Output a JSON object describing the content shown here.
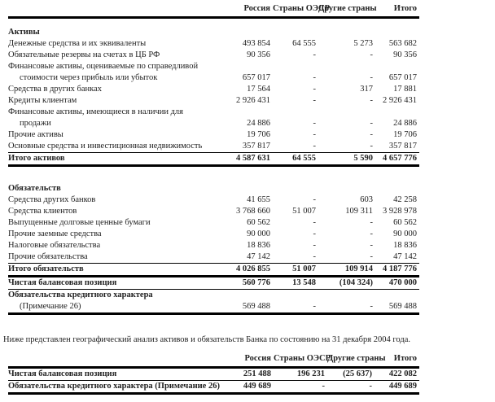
{
  "table1": {
    "headers": [
      "",
      "Россия",
      "Страны ОЭСР",
      "Другие страны",
      "Итого"
    ],
    "rows": [
      {
        "label": "Активы",
        "style": "section",
        "values": [
          "",
          "",
          "",
          ""
        ]
      },
      {
        "label": "Денежные средства и их эквиваленты",
        "values": [
          "493 854",
          "64 555",
          "5 273",
          "563 682"
        ]
      },
      {
        "label": "Обязательные резервы на счетах в ЦБ РФ",
        "values": [
          "90 356",
          "-",
          "-",
          "90 356"
        ]
      },
      {
        "label": "Финансовые активы, оцениваемые по справедливой",
        "values": [
          "",
          "",
          "",
          ""
        ]
      },
      {
        "label": "стоимости через прибыль или убыток",
        "style": "indent",
        "values": [
          "657 017",
          "-",
          "-",
          "657 017"
        ]
      },
      {
        "label": "Средства в других банках",
        "values": [
          "17 564",
          "-",
          "317",
          "17 881"
        ]
      },
      {
        "label": "Кредиты клиентам",
        "values": [
          "2 926 431",
          "-",
          "-",
          "2 926 431"
        ]
      },
      {
        "label": "Финансовые активы, имеющиеся в наличии для",
        "values": [
          "",
          "",
          "",
          ""
        ]
      },
      {
        "label": "продажи",
        "style": "indent",
        "values": [
          "24 886",
          "-",
          "-",
          "24 886"
        ]
      },
      {
        "label": "Прочие активы",
        "values": [
          "19 706",
          "-",
          "-",
          "19 706"
        ]
      },
      {
        "label": "Основные средства и инвестиционная недвижимость",
        "style": "thin",
        "values": [
          "357 817",
          "-",
          "-",
          "357 817"
        ]
      },
      {
        "label": "Итого активов",
        "style": "bold thick",
        "values": [
          "4 587 631",
          "64 555",
          "5 590",
          "4 657 776"
        ]
      },
      {
        "label": "",
        "style": "gap",
        "values": [
          "",
          "",
          "",
          ""
        ]
      },
      {
        "label": "Обязательств",
        "style": "section",
        "values": [
          "",
          "",
          "",
          ""
        ]
      },
      {
        "label": "Средства других банков",
        "values": [
          "41 655",
          "-",
          "603",
          "42 258"
        ]
      },
      {
        "label": "Средства клиентов",
        "values": [
          "3 768 660",
          "51 007",
          "109 311",
          "3 928 978"
        ]
      },
      {
        "label": "Выпущенные долговые ценные бумаги",
        "values": [
          "60 562",
          "-",
          "-",
          "60 562"
        ]
      },
      {
        "label": "Прочие заемные средства",
        "values": [
          "90 000",
          "-",
          "-",
          "90 000"
        ]
      },
      {
        "label": "Налоговые обязательства",
        "values": [
          "18 836",
          "-",
          "-",
          "18 836"
        ]
      },
      {
        "label": "Прочие обязательства",
        "style": "thin",
        "values": [
          "47 142",
          "-",
          "-",
          "47 142"
        ]
      },
      {
        "label": "Итого обязательств",
        "style": "bold thick",
        "values": [
          "4 026 855",
          "51 007",
          "109 914",
          "4 187 776"
        ]
      },
      {
        "label": "Чистая балансовая позиция",
        "style": "bold thin",
        "values": [
          "560 776",
          "13 548",
          "(104 324)",
          "470 000"
        ]
      },
      {
        "label": "Обязательства кредитного характера",
        "style": "bold",
        "values": [
          "",
          "",
          "",
          ""
        ]
      },
      {
        "label": "(Примечание 26)",
        "style": "indent thick",
        "values": [
          "569 488",
          "-",
          "-",
          "569 488"
        ]
      }
    ]
  },
  "note": "Ниже представлен географический анализ активов и обязательств Банка по состоянию на 31 декабря 2004 года.",
  "table2": {
    "headers": [
      "",
      "Россия",
      "Страны ОЭСР",
      "Другие страны",
      "Итого"
    ],
    "rows": [
      {
        "label": "Чистая балансовая позиция",
        "style": "bold thin",
        "values": [
          "251 488",
          "196 231",
          "(25 637)",
          "422 082"
        ]
      },
      {
        "label": "Обязательства кредитного характера (Примечание 26)",
        "style": "bold thick",
        "values": [
          "449 689",
          "-",
          "-",
          "449 689"
        ]
      }
    ]
  }
}
